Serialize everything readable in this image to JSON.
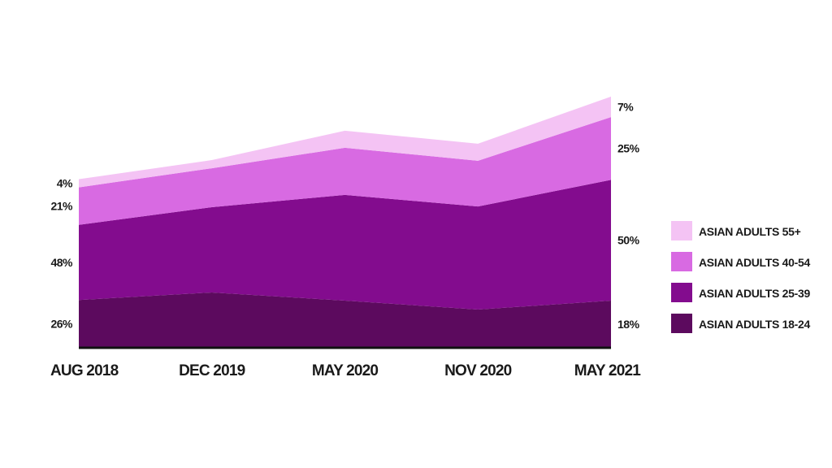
{
  "chart_data": {
    "type": "area",
    "stacked": true,
    "title": "",
    "xlabel": "",
    "ylabel": "",
    "categories": [
      "AUG 2018",
      "DEC 2019",
      "MAY 2020",
      "NOV 2020",
      "MAY 2021"
    ],
    "series": [
      {
        "name": "ASIAN ADULTS 18-24",
        "color": "#5c0a5e",
        "values": [
          7.0,
          8.1,
          6.9,
          5.6,
          6.9
        ]
      },
      {
        "name": "ASIAN ADULTS 25-39",
        "color": "#830c8e",
        "values": [
          11.0,
          12.5,
          15.5,
          15.1,
          17.7
        ]
      },
      {
        "name": "ASIAN ADULTS 40-54",
        "color": "#d86ae2",
        "values": [
          5.5,
          5.7,
          6.9,
          6.7,
          9.2
        ]
      },
      {
        "name": "ASIAN ADULTS 55+",
        "color": "#f4c3f4",
        "values": [
          1.2,
          1.2,
          2.5,
          2.5,
          3.0
        ]
      }
    ],
    "start_labels": [
      "26%",
      "48%",
      "21%",
      "4%"
    ],
    "end_labels": [
      "18%",
      "50%",
      "25%",
      "7%"
    ],
    "ylim": [
      0,
      40
    ],
    "grid": false,
    "legend_position": "right"
  }
}
